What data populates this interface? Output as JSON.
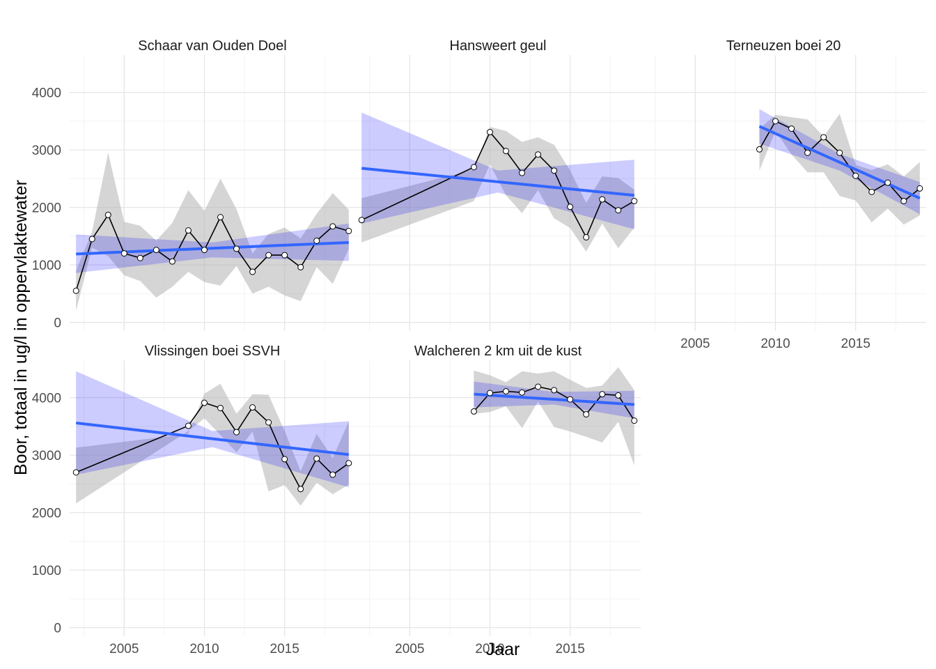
{
  "chart_data": {
    "type": "line",
    "xlabel": "Jaar",
    "ylabel": "Boor, totaal in ug/l in oppervlaktewater",
    "x_ticks": [
      2005,
      2010,
      2015
    ],
    "y_ticks": [
      0,
      1000,
      2000,
      3000,
      4000
    ],
    "xlim": [
      2001.6,
      2019.4
    ],
    "ylim": [
      -150,
      4650
    ],
    "grid": true,
    "colors": {
      "line": "#000000",
      "point_fill": "#ffffff",
      "trend": "#3366ff",
      "trend_band": "#0000ff",
      "range_band": "#b3b3b3",
      "grid_major": "#e6e6e6",
      "grid_minor": "#f2f2f2"
    },
    "panels": [
      {
        "title": "Schaar van Ouden Doel",
        "x": [
          2002,
          2003,
          2004,
          2005,
          2006,
          2007,
          2008,
          2009,
          2010,
          2011,
          2012,
          2013,
          2014,
          2015,
          2016,
          2017,
          2018,
          2019
        ],
        "y": [
          550,
          1450,
          1870,
          1200,
          1120,
          1260,
          1060,
          1600,
          1260,
          1830,
          1280,
          880,
          1170,
          1170,
          960,
          1420,
          1670,
          1590
        ],
        "band_low": [
          200,
          1300,
          1150,
          820,
          720,
          430,
          620,
          880,
          700,
          640,
          980,
          500,
          620,
          470,
          370,
          960,
          670,
          1280
        ],
        "band_high": [
          900,
          1580,
          2950,
          1750,
          1680,
          1420,
          1730,
          2300,
          1940,
          2500,
          1970,
          1200,
          1540,
          1650,
          1460,
          1890,
          2250,
          1960
        ],
        "trend": {
          "x0": 2002,
          "y0": 1190,
          "x1": 2019,
          "y1": 1390
        },
        "trend_ci": {
          "x": [
            2002,
            2010.5,
            2019
          ],
          "low": [
            860,
            1130,
            1070
          ],
          "high": [
            1530,
            1390,
            1720
          ]
        }
      },
      {
        "title": "Hansweert geul",
        "x": [
          2002,
          2009,
          2010,
          2011,
          2012,
          2013,
          2014,
          2015,
          2016,
          2017,
          2018,
          2019
        ],
        "y": [
          1780,
          2700,
          3310,
          2980,
          2600,
          2920,
          2640,
          2010,
          1480,
          2140,
          1950,
          2110
        ],
        "band_low": [
          1390,
          2110,
          2750,
          2210,
          1900,
          2300,
          1810,
          1640,
          1230,
          1720,
          1290,
          1650
        ],
        "band_high": [
          2160,
          2660,
          3400,
          3330,
          3140,
          3220,
          3090,
          2640,
          2080,
          2540,
          2510,
          2310
        ],
        "trend": {
          "x0": 2002,
          "y0": 2680,
          "x1": 2019,
          "y1": 2210
        },
        "trend_ci": {
          "x": [
            2002,
            2010.5,
            2019
          ],
          "low": [
            1720,
            2260,
            1620
          ],
          "high": [
            3650,
            2640,
            2830
          ]
        }
      },
      {
        "title": "Terneuzen boei 20",
        "x": [
          2009,
          2010,
          2011,
          2012,
          2013,
          2014,
          2015,
          2016,
          2017,
          2018,
          2019
        ],
        "y": [
          3010,
          3500,
          3370,
          2950,
          3220,
          2950,
          2550,
          2270,
          2430,
          2110,
          2330
        ],
        "band_low": [
          2640,
          3330,
          2920,
          2610,
          2610,
          2200,
          2120,
          1740,
          1980,
          1700,
          1860
        ],
        "band_high": [
          3370,
          3610,
          3570,
          3530,
          3230,
          3630,
          2740,
          2650,
          2750,
          2540,
          2790
        ],
        "trend": {
          "x0": 2009,
          "y0": 3410,
          "x1": 2019,
          "y1": 2160
        },
        "trend_ci": {
          "x": [
            2009,
            2014,
            2019
          ],
          "low": [
            3110,
            2640,
            1880
          ],
          "high": [
            3710,
            2930,
            2440
          ]
        }
      },
      {
        "title": "Vlissingen boei SSVH",
        "x": [
          2002,
          2009,
          2010,
          2011,
          2012,
          2013,
          2014,
          2015,
          2016,
          2017,
          2018,
          2019
        ],
        "y": [
          2700,
          3510,
          3910,
          3820,
          3400,
          3830,
          3570,
          2930,
          2410,
          2940,
          2660,
          2860
        ],
        "band_low": [
          2160,
          3420,
          3640,
          3350,
          3050,
          3410,
          2370,
          2480,
          2120,
          2520,
          2320,
          2490
        ],
        "band_high": [
          3130,
          3370,
          4070,
          4240,
          3720,
          4060,
          4050,
          3420,
          2720,
          3370,
          2950,
          3590
        ],
        "trend": {
          "x0": 2002,
          "y0": 3560,
          "x1": 2019,
          "y1": 3010
        },
        "trend_ci": {
          "x": [
            2002,
            2010.5,
            2019
          ],
          "low": [
            2660,
            3140,
            2440
          ],
          "high": [
            4460,
            3420,
            3590
          ]
        }
      },
      {
        "title": "Walcheren 2 km uit de kust",
        "x": [
          2009,
          2010,
          2011,
          2012,
          2013,
          2014,
          2015,
          2016,
          2017,
          2018,
          2019
        ],
        "y": [
          3760,
          4080,
          4110,
          4090,
          4190,
          4130,
          3970,
          3710,
          4060,
          4040,
          3600
        ],
        "band_low": [
          3720,
          3750,
          3850,
          3470,
          3930,
          3490,
          3410,
          3320,
          3220,
          3580,
          2820
        ],
        "band_high": [
          4470,
          4390,
          4270,
          4460,
          4420,
          4460,
          4310,
          4170,
          4210,
          4530,
          4130
        ],
        "trend": {
          "x0": 2009,
          "y0": 4060,
          "x1": 2019,
          "y1": 3880
        },
        "trend_ci": {
          "x": [
            2009,
            2014,
            2019
          ],
          "low": [
            3830,
            3880,
            3640
          ],
          "high": [
            4280,
            4100,
            4120
          ]
        }
      }
    ]
  }
}
